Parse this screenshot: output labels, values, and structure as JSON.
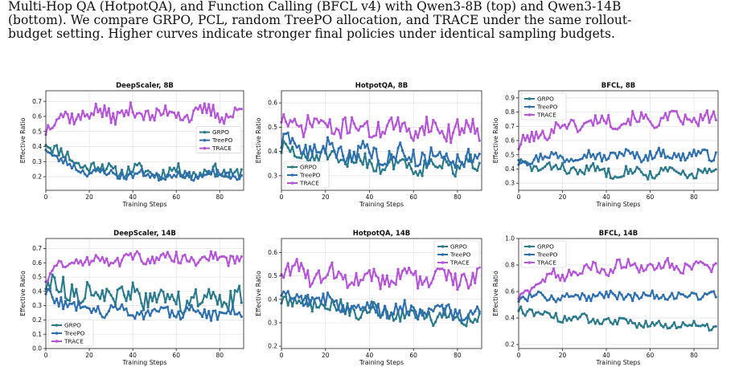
{
  "caption": {
    "line1": "Multi-Hop QA (HotpotQA), and Function Calling (BFCL v4) with Qwen3-8B (top) and Qwen3-14B",
    "line2": "(bottom).  We compare GRPO, PCL, random TreePO allocation, and TRACE under the same rollout-",
    "line3": "budget setting. Higher curves indicate stronger final policies under identical sampling budgets."
  },
  "colors": {
    "GRPO": "#2b7a8c",
    "TreePO": "#2f6fae",
    "TRACE": "#b455d6"
  },
  "chart_data": [
    {
      "type": "line",
      "title": "DeepScaler, 8B",
      "xlabel": "Training Steps",
      "ylabel": "Effective Ratio",
      "xlim": [
        0,
        91
      ],
      "ylim": [
        0.11,
        0.77
      ],
      "xticks": [
        0,
        20,
        40,
        60,
        80
      ],
      "yticks": [
        0.2,
        0.3,
        0.4,
        0.5,
        0.6,
        0.7
      ],
      "grid": true,
      "legend": "right",
      "legend_order": [
        "GRPO",
        "TreePO",
        "TRACE"
      ],
      "series": [
        {
          "name": "GRPO",
          "start": 0.45,
          "end": 0.23,
          "tau": 12,
          "noise": 0.04,
          "seed": 11
        },
        {
          "name": "TreePO",
          "start": 0.4,
          "end": 0.21,
          "tau": 10,
          "noise": 0.025,
          "seed": 23
        },
        {
          "name": "TRACE",
          "start": 0.52,
          "end": 0.62,
          "tau": 6,
          "noise": 0.05,
          "seed": 37
        }
      ]
    },
    {
      "type": "line",
      "title": "HotpotQA, 8B",
      "xlabel": "Training Steps",
      "ylabel": "Effective Ratio",
      "xlim": [
        0,
        91
      ],
      "ylim": [
        0.24,
        0.65
      ],
      "xticks": [
        0,
        20,
        40,
        60,
        80
      ],
      "yticks": [
        0.3,
        0.4,
        0.5,
        0.6
      ],
      "grid": true,
      "legend": "lower-left",
      "legend_order": [
        "GRPO",
        "TreePO",
        "TRACE"
      ],
      "series": [
        {
          "name": "GRPO",
          "start": 0.4,
          "end": 0.33,
          "tau": 40,
          "noise": 0.035,
          "seed": 51
        },
        {
          "name": "TreePO",
          "start": 0.43,
          "end": 0.37,
          "tau": 40,
          "noise": 0.035,
          "seed": 63
        },
        {
          "name": "TRACE",
          "start": 0.52,
          "end": 0.49,
          "tau": 30,
          "noise": 0.04,
          "seed": 71
        }
      ]
    },
    {
      "type": "line",
      "title": "BFCL, 8B",
      "xlabel": "Training Steps",
      "ylabel": "Effective Ratio",
      "xlim": [
        0,
        91
      ],
      "ylim": [
        0.25,
        0.95
      ],
      "xticks": [
        0,
        20,
        40,
        60,
        80
      ],
      "yticks": [
        0.3,
        0.4,
        0.5,
        0.6,
        0.7,
        0.8,
        0.9
      ],
      "grid": true,
      "legend": "upper-left",
      "legend_order": [
        "GRPO",
        "TreePO",
        "TRACE"
      ],
      "series": [
        {
          "name": "GRPO",
          "start": 0.43,
          "end": 0.36,
          "tau": 40,
          "noise": 0.035,
          "seed": 83
        },
        {
          "name": "TreePO",
          "start": 0.47,
          "end": 0.5,
          "tau": 20,
          "noise": 0.035,
          "seed": 97
        },
        {
          "name": "TRACE",
          "start": 0.55,
          "end": 0.75,
          "tau": 15,
          "noise": 0.045,
          "seed": 101
        }
      ]
    },
    {
      "type": "line",
      "title": "DeepScaler, 14B",
      "xlabel": "Training Steps",
      "ylabel": "Effective Ratio",
      "xlim": [
        0,
        91
      ],
      "ylim": [
        0.0,
        0.77
      ],
      "xticks": [
        0,
        20,
        40,
        60,
        80
      ],
      "yticks": [
        0.0,
        0.1,
        0.2,
        0.3,
        0.4,
        0.5,
        0.6,
        0.7
      ],
      "grid": true,
      "legend": "lower-left",
      "legend_order": [
        "GRPO",
        "TreePO",
        "TRACE"
      ],
      "series": [
        {
          "name": "GRPO",
          "start": 0.45,
          "end": 0.33,
          "tau": 30,
          "noise": 0.07,
          "seed": 113
        },
        {
          "name": "TreePO",
          "start": 0.38,
          "end": 0.25,
          "tau": 15,
          "noise": 0.04,
          "seed": 127
        },
        {
          "name": "TRACE",
          "start": 0.5,
          "end": 0.63,
          "tau": 8,
          "noise": 0.04,
          "seed": 131
        }
      ]
    },
    {
      "type": "line",
      "title": "HotpotQA, 14B",
      "xlabel": "Training Steps",
      "ylabel": "Effective Ratio",
      "xlim": [
        0,
        91
      ],
      "ylim": [
        0.19,
        0.66
      ],
      "xticks": [
        0,
        20,
        40,
        60,
        80
      ],
      "yticks": [
        0.2,
        0.3,
        0.4,
        0.5,
        0.6
      ],
      "grid": true,
      "legend": "upper-right",
      "legend_order": [
        "GRPO",
        "TreePO",
        "TRACE"
      ],
      "series": [
        {
          "name": "GRPO",
          "start": 0.41,
          "end": 0.31,
          "tau": 40,
          "noise": 0.03,
          "seed": 149
        },
        {
          "name": "TreePO",
          "start": 0.43,
          "end": 0.33,
          "tau": 40,
          "noise": 0.03,
          "seed": 157
        },
        {
          "name": "TRACE",
          "start": 0.53,
          "end": 0.49,
          "tau": 20,
          "noise": 0.04,
          "seed": 163
        }
      ]
    },
    {
      "type": "line",
      "title": "BFCL, 14B",
      "xlabel": "Training Steps",
      "ylabel": "Effective Ratio",
      "xlim": [
        0,
        91
      ],
      "ylim": [
        0.17,
        1.0
      ],
      "xticks": [
        0,
        20,
        40,
        60,
        80
      ],
      "yticks": [
        0.2,
        0.4,
        0.6,
        0.8,
        1.0
      ],
      "grid": true,
      "legend": "upper-left",
      "legend_order": [
        "GRPO",
        "TreePO",
        "TRACE"
      ],
      "series": [
        {
          "name": "GRPO",
          "start": 0.47,
          "end": 0.34,
          "tau": 30,
          "noise": 0.03,
          "seed": 173
        },
        {
          "name": "TreePO",
          "start": 0.55,
          "end": 0.57,
          "tau": 20,
          "noise": 0.03,
          "seed": 181
        },
        {
          "name": "TRACE",
          "start": 0.55,
          "end": 0.8,
          "tau": 15,
          "noise": 0.045,
          "seed": 191
        }
      ]
    }
  ]
}
